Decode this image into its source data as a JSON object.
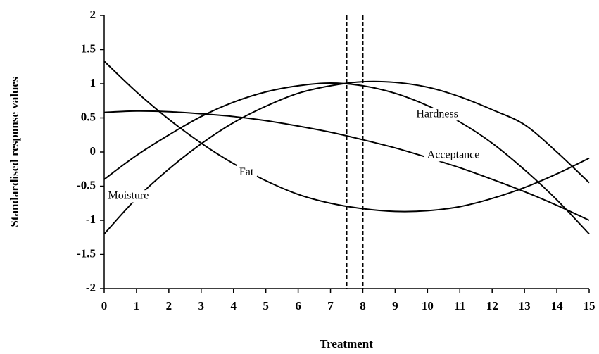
{
  "chart_data": {
    "type": "line",
    "x_label": "Treatment",
    "y_label": "Standardised response values",
    "x": [
      0,
      1,
      2,
      3,
      4,
      5,
      6,
      7,
      8,
      9,
      10,
      11,
      12,
      13,
      14,
      15
    ],
    "series": [
      {
        "name": "Fat",
        "color": "#000000",
        "values": [
          1.33,
          0.88,
          0.48,
          0.13,
          -0.17,
          -0.42,
          -0.62,
          -0.75,
          -0.83,
          -0.87,
          -0.86,
          -0.8,
          -0.68,
          -0.52,
          -0.32,
          -0.09
        ]
      },
      {
        "name": "Acceptance",
        "color": "#000000",
        "values": [
          0.58,
          0.6,
          0.59,
          0.56,
          0.52,
          0.46,
          0.38,
          0.29,
          0.18,
          0.06,
          -0.08,
          -0.23,
          -0.4,
          -0.58,
          -0.78,
          -1.0
        ]
      },
      {
        "name": "Moisture",
        "color": "#000000",
        "values": [
          -0.4,
          -0.05,
          0.25,
          0.52,
          0.73,
          0.88,
          0.97,
          1.01,
          0.97,
          0.86,
          0.68,
          0.44,
          0.13,
          -0.26,
          -0.7,
          -1.2
        ]
      },
      {
        "name": "Hardness",
        "color": "#000000",
        "values": [
          -1.2,
          -0.68,
          -0.25,
          0.12,
          0.43,
          0.67,
          0.86,
          0.97,
          1.03,
          1.02,
          0.95,
          0.81,
          0.62,
          0.4,
          0.0,
          -0.45
        ]
      }
    ],
    "vlines": [
      7.5,
      8
    ],
    "xlim": [
      0,
      15
    ],
    "xticks": [
      0,
      1,
      2,
      3,
      4,
      5,
      6,
      7,
      8,
      9,
      10,
      11,
      12,
      13,
      14,
      15
    ],
    "ylim": [
      -2,
      2
    ],
    "yticks": [
      {
        "value": -2,
        "label": "-2"
      },
      {
        "value": -1.5,
        "label": "-1.5"
      },
      {
        "value": -1,
        "label": "-1"
      },
      {
        "value": -0.5,
        "label": "-0.5"
      },
      0,
      0.5,
      1,
      1.5,
      2
    ]
  }
}
